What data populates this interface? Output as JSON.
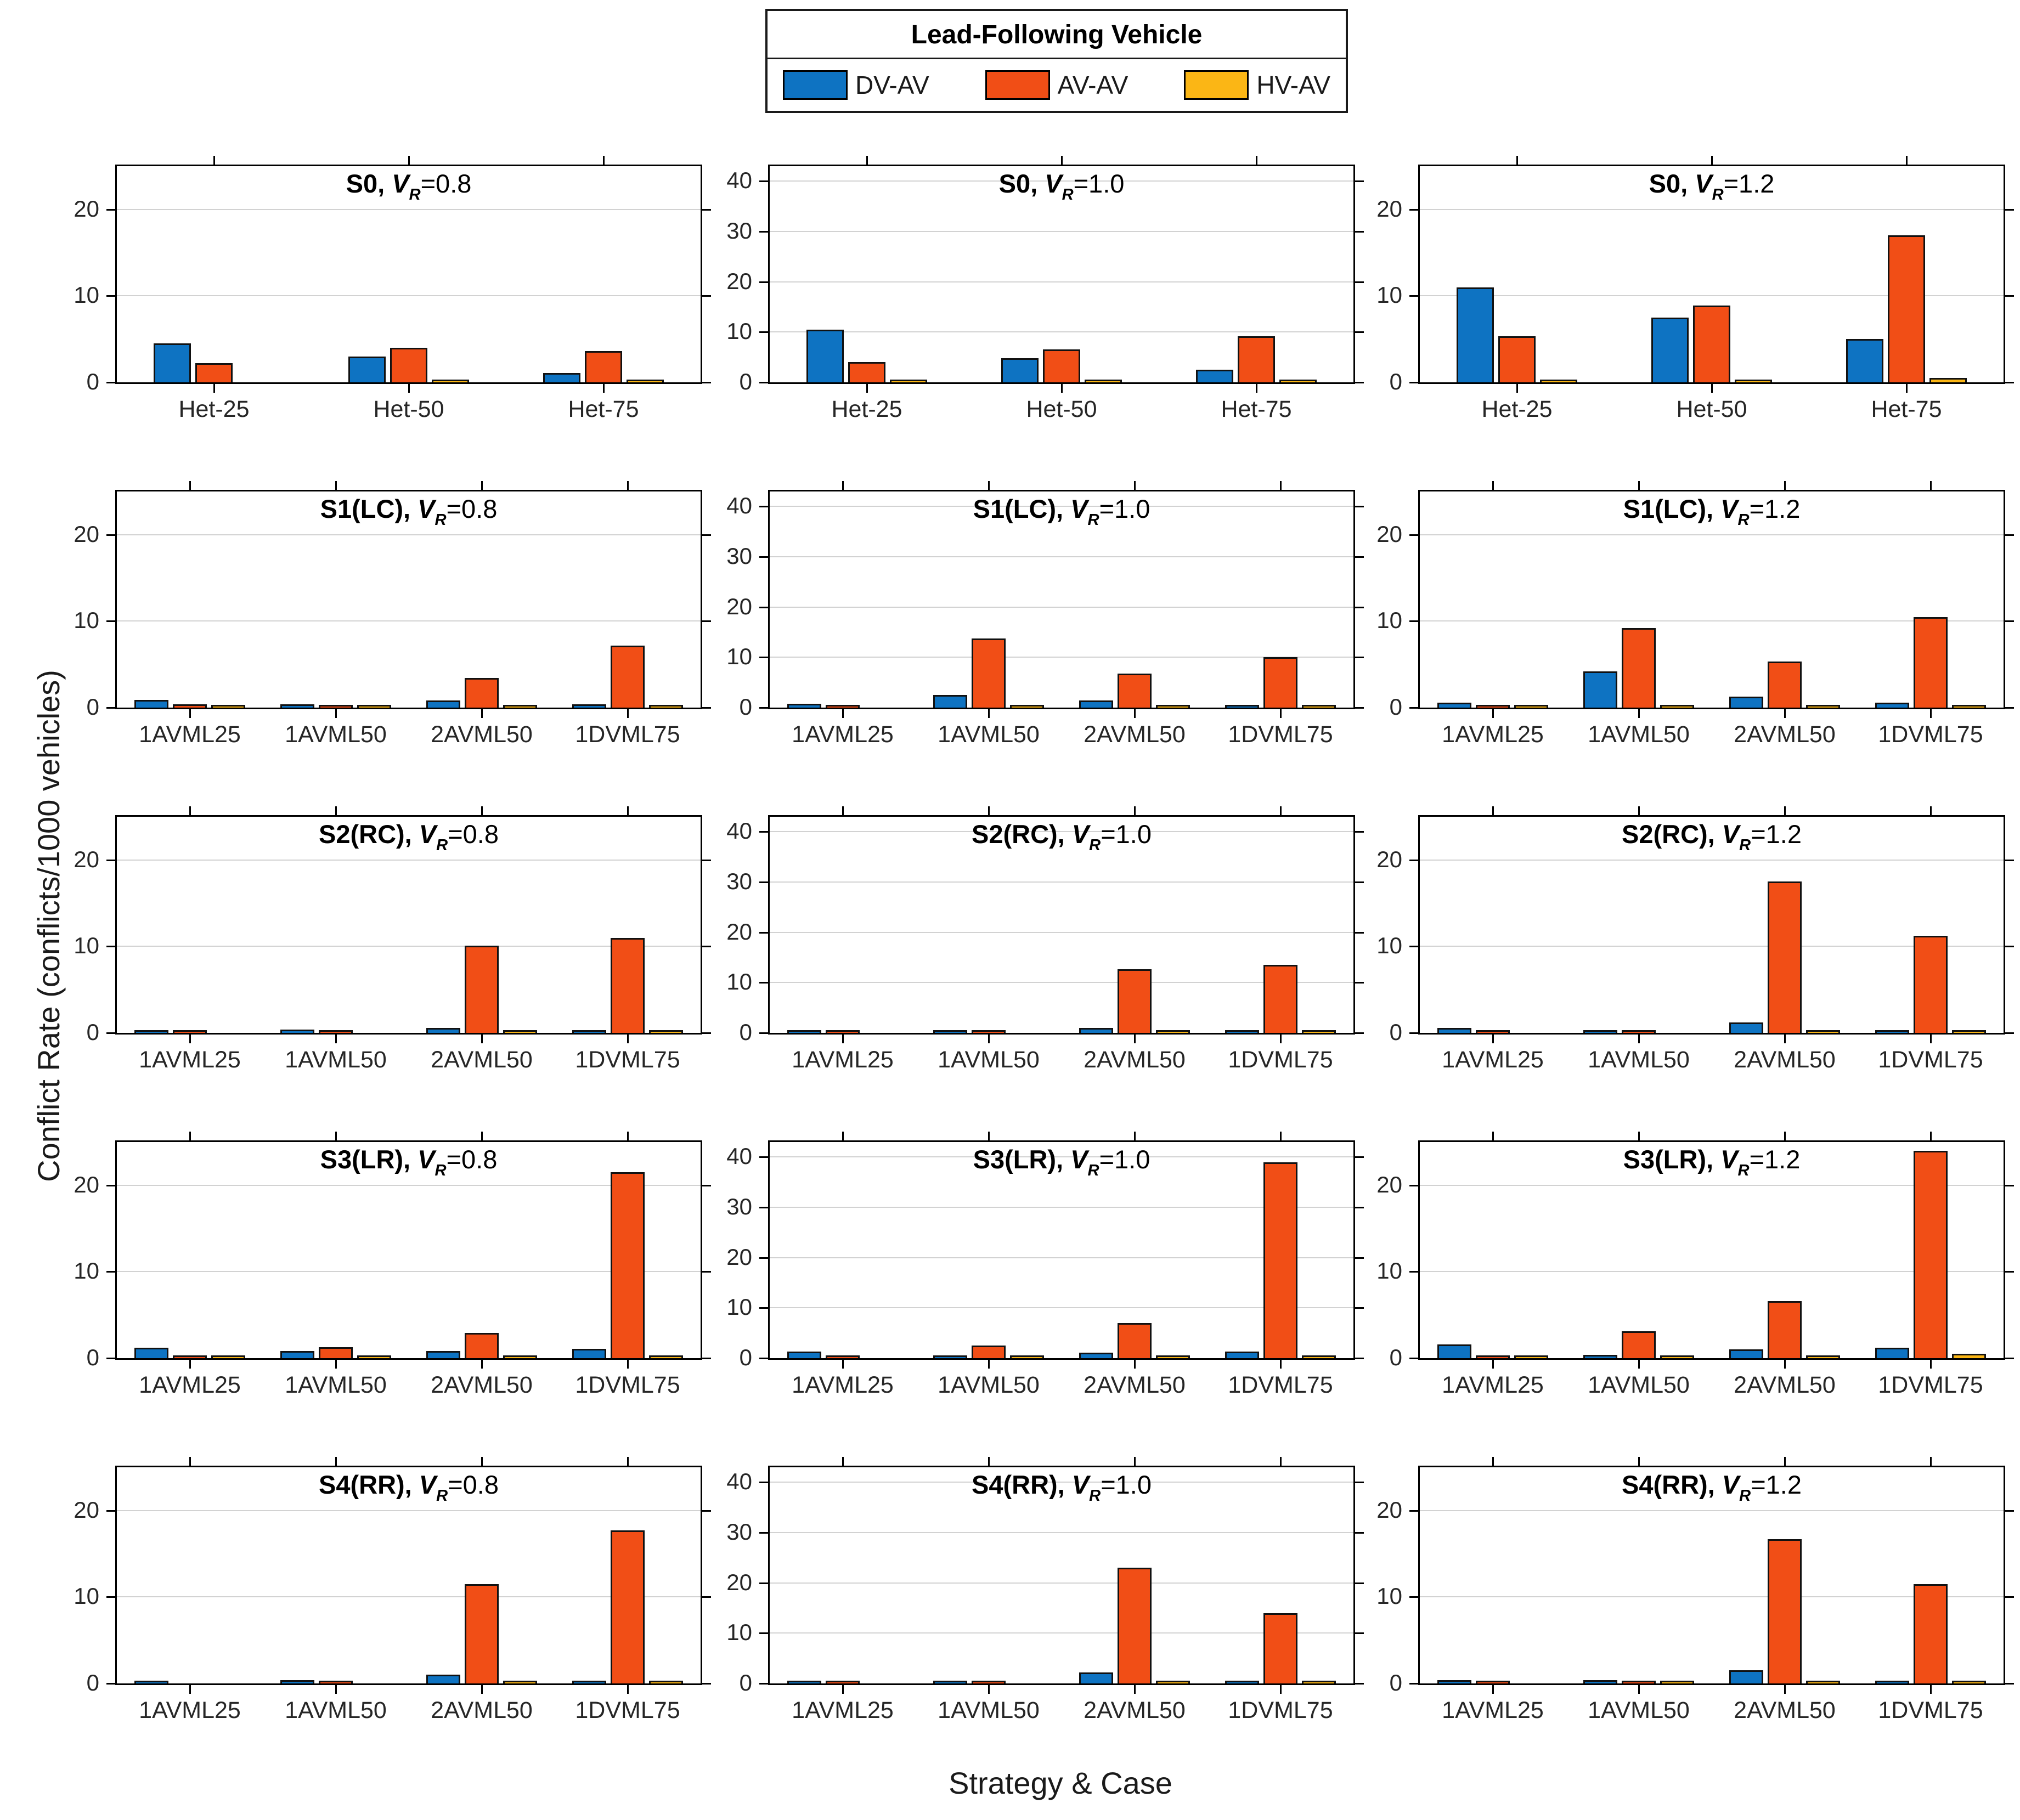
{
  "legend": {
    "title": "Lead-Following Vehicle"
  },
  "axes": {
    "ylabel": "Conflict Rate (conflicts/1000 vehicles)",
    "xlabel": "Strategy & Case"
  },
  "chart_data": {
    "type": "bar",
    "legend_position": "top-center",
    "grid": "horizontal",
    "var_symbol": "V",
    "var_subscript": "R",
    "series": [
      {
        "name": "DV-AV",
        "color": "#0e73c2"
      },
      {
        "name": "AV-AV",
        "color": "#f14e16"
      },
      {
        "name": "HV-AV",
        "color": "#fbb615"
      }
    ],
    "columns": [
      {
        "vr": "0.8",
        "ylim": [
          0,
          25
        ],
        "yticks": [
          0,
          10,
          20
        ]
      },
      {
        "vr": "1.0",
        "ylim": [
          0,
          43
        ],
        "yticks": [
          0,
          10,
          20,
          30,
          40
        ]
      },
      {
        "vr": "1.2",
        "ylim": [
          0,
          25
        ],
        "yticks": [
          0,
          10,
          20
        ]
      }
    ],
    "rows": [
      {
        "strategy": "S0",
        "categories": [
          "Het-25",
          "Het-50",
          "Het-75"
        ],
        "panels": [
          {
            "values": [
              [
                4.5,
                2.2,
                0
              ],
              [
                3.0,
                4.0,
                0.15
              ],
              [
                1.1,
                3.6,
                0.2
              ]
            ]
          },
          {
            "values": [
              [
                10.5,
                4.0,
                0.3
              ],
              [
                4.8,
                6.5,
                0.05
              ],
              [
                2.5,
                9.2,
                0.3
              ]
            ]
          },
          {
            "values": [
              [
                11.0,
                5.3,
                0.3
              ],
              [
                7.5,
                8.9,
                0.3
              ],
              [
                5.0,
                17.0,
                0.5
              ]
            ]
          }
        ]
      },
      {
        "strategy": "S1(LC)",
        "categories": [
          "1AVML25",
          "1AVML50",
          "2AVML50",
          "1DVML75"
        ],
        "panels": [
          {
            "values": [
              [
                0.9,
                0.35,
                0.05
              ],
              [
                0.4,
                0.2,
                0.05
              ],
              [
                0.8,
                3.4,
                0.05
              ],
              [
                0.4,
                7.2,
                0.15
              ]
            ]
          },
          {
            "values": [
              [
                0.8,
                0.1,
                0
              ],
              [
                2.5,
                13.7,
                0.05
              ],
              [
                1.4,
                6.8,
                0.05
              ],
              [
                0.6,
                10.0,
                0.05
              ]
            ]
          },
          {
            "values": [
              [
                0.6,
                0.15,
                0.15
              ],
              [
                4.2,
                9.2,
                0.05
              ],
              [
                1.3,
                5.3,
                0.05
              ],
              [
                0.6,
                10.5,
                0.15
              ]
            ]
          }
        ]
      },
      {
        "strategy": "S2(RC)",
        "categories": [
          "1AVML25",
          "1AVML50",
          "2AVML50",
          "1DVML75"
        ],
        "panels": [
          {
            "values": [
              [
                0.2,
                0.05,
                0
              ],
              [
                0.35,
                0.15,
                0
              ],
              [
                0.6,
                10.1,
                0.05
              ],
              [
                0.2,
                11.0,
                0.05
              ]
            ]
          },
          {
            "values": [
              [
                0.5,
                0.25,
                0
              ],
              [
                0.05,
                0.05,
                0
              ],
              [
                1.0,
                12.7,
                0.05
              ],
              [
                0.3,
                13.5,
                0.05
              ]
            ]
          },
          {
            "values": [
              [
                0.6,
                0.15,
                0
              ],
              [
                0.3,
                0.15,
                0
              ],
              [
                1.2,
                17.5,
                0.05
              ],
              [
                0.3,
                11.2,
                0.05
              ]
            ]
          }
        ]
      },
      {
        "strategy": "S3(LR)",
        "categories": [
          "1AVML25",
          "1AVML50",
          "2AVML50",
          "1DVML75"
        ],
        "panels": [
          {
            "values": [
              [
                1.2,
                0.05,
                0.05
              ],
              [
                0.8,
                1.3,
                0.15
              ],
              [
                0.8,
                2.9,
                0.15
              ],
              [
                1.1,
                21.5,
                0.15
              ]
            ]
          },
          {
            "values": [
              [
                1.3,
                0.3,
                0
              ],
              [
                0.3,
                2.5,
                0.05
              ],
              [
                1.1,
                7.0,
                0.05
              ],
              [
                1.3,
                39.0,
                0.5
              ]
            ]
          },
          {
            "values": [
              [
                1.6,
                0.2,
                0.05
              ],
              [
                0.4,
                3.1,
                0.05
              ],
              [
                1.0,
                6.6,
                0.05
              ],
              [
                1.2,
                24.0,
                0.5
              ]
            ]
          }
        ]
      },
      {
        "strategy": "S4(RR)",
        "categories": [
          "1AVML25",
          "1AVML50",
          "2AVML50",
          "1DVML75"
        ],
        "panels": [
          {
            "values": [
              [
                0.05,
                0,
                0
              ],
              [
                0.4,
                0.05,
                0
              ],
              [
                1.0,
                11.5,
                0.15
              ],
              [
                0.15,
                17.7,
                0.05
              ]
            ]
          },
          {
            "values": [
              [
                0.3,
                0.05,
                0
              ],
              [
                0.5,
                0.05,
                0
              ],
              [
                2.2,
                23.0,
                0.5
              ],
              [
                0.05,
                14.0,
                0.05
              ]
            ]
          },
          {
            "values": [
              [
                0.4,
                0.05,
                0
              ],
              [
                0.4,
                0.2,
                0.05
              ],
              [
                1.5,
                16.7,
                0.3
              ],
              [
                0.05,
                11.5,
                0.05
              ]
            ]
          }
        ]
      }
    ]
  }
}
